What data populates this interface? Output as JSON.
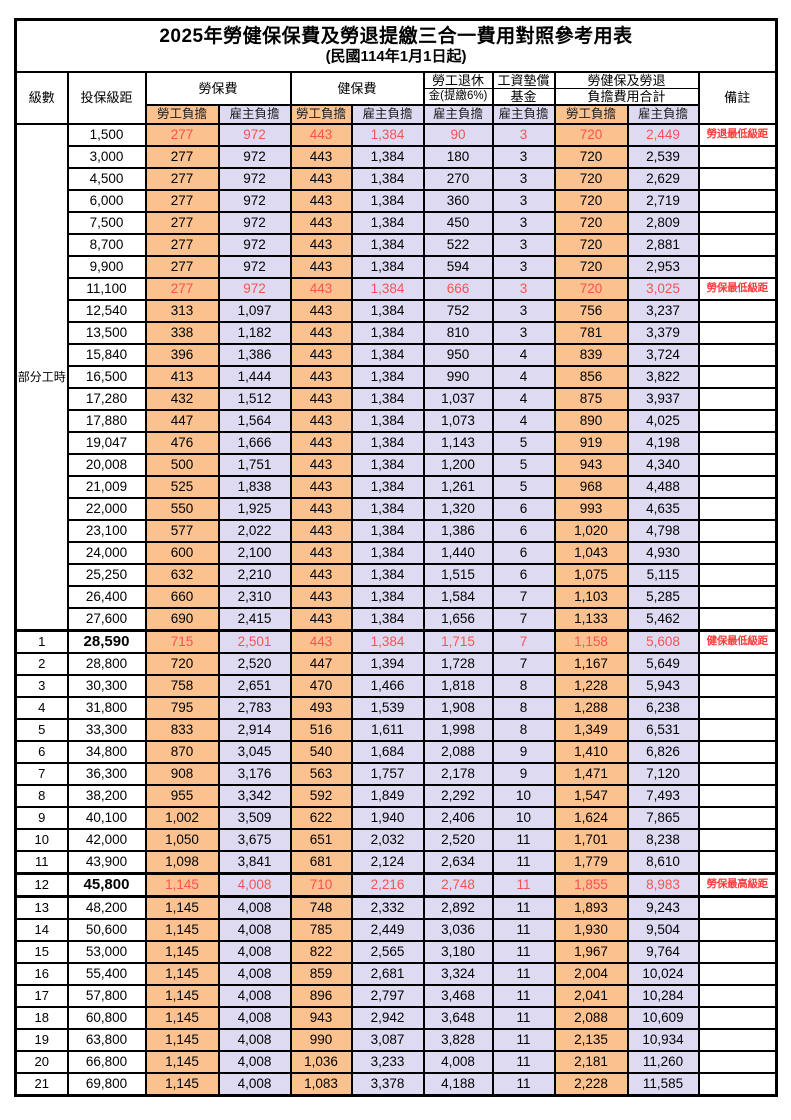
{
  "title": "2025年勞健保保費及勞退提繳三合一費用對照參考用表",
  "subtitle": "(民國114年1月1日起)",
  "colors": {
    "employee_bg": "#FBC18F",
    "employer_bg": "#DEDAF2",
    "highlight_red": "#F75353",
    "remark_red": "#FF3B3B",
    "border": "#000000"
  },
  "header": {
    "level": "級數",
    "bracket": "投保級距",
    "labor_insurance": "勞保費",
    "health_insurance": "健保費",
    "pension_line1": "勞工退休",
    "pension_line2": "金(提繳6%)",
    "wage_fund_line1": "工資墊償",
    "wage_fund_line2": "基金",
    "total_line1": "勞健保及勞退",
    "total_line2": "負擔費用合計",
    "remark": "備註",
    "employee_label": "勞工負擔",
    "employer_label": "雇主負擔"
  },
  "part_time_label": "部分工時",
  "part_time_row_count": 23,
  "rows": [
    {
      "cells": [
        "",
        "1,500",
        "277",
        "972",
        "443",
        "1,384",
        "90",
        "3",
        "720",
        "2,449",
        "勞退最低級距"
      ],
      "red": true
    },
    {
      "cells": [
        "",
        "3,000",
        "277",
        "972",
        "443",
        "1,384",
        "180",
        "3",
        "720",
        "2,539",
        ""
      ]
    },
    {
      "cells": [
        "",
        "4,500",
        "277",
        "972",
        "443",
        "1,384",
        "270",
        "3",
        "720",
        "2,629",
        ""
      ]
    },
    {
      "cells": [
        "",
        "6,000",
        "277",
        "972",
        "443",
        "1,384",
        "360",
        "3",
        "720",
        "2,719",
        ""
      ]
    },
    {
      "cells": [
        "",
        "7,500",
        "277",
        "972",
        "443",
        "1,384",
        "450",
        "3",
        "720",
        "2,809",
        ""
      ]
    },
    {
      "cells": [
        "",
        "8,700",
        "277",
        "972",
        "443",
        "1,384",
        "522",
        "3",
        "720",
        "2,881",
        ""
      ]
    },
    {
      "cells": [
        "",
        "9,900",
        "277",
        "972",
        "443",
        "1,384",
        "594",
        "3",
        "720",
        "2,953",
        ""
      ]
    },
    {
      "cells": [
        "",
        "11,100",
        "277",
        "972",
        "443",
        "1,384",
        "666",
        "3",
        "720",
        "3,025",
        "勞保最低級距"
      ],
      "red": true
    },
    {
      "cells": [
        "",
        "12,540",
        "313",
        "1,097",
        "443",
        "1,384",
        "752",
        "3",
        "756",
        "3,237",
        ""
      ]
    },
    {
      "cells": [
        "",
        "13,500",
        "338",
        "1,182",
        "443",
        "1,384",
        "810",
        "3",
        "781",
        "3,379",
        ""
      ]
    },
    {
      "cells": [
        "",
        "15,840",
        "396",
        "1,386",
        "443",
        "1,384",
        "950",
        "4",
        "839",
        "3,724",
        ""
      ]
    },
    {
      "cells": [
        "",
        "16,500",
        "413",
        "1,444",
        "443",
        "1,384",
        "990",
        "4",
        "856",
        "3,822",
        ""
      ]
    },
    {
      "cells": [
        "",
        "17,280",
        "432",
        "1,512",
        "443",
        "1,384",
        "1,037",
        "4",
        "875",
        "3,937",
        ""
      ]
    },
    {
      "cells": [
        "",
        "17,880",
        "447",
        "1,564",
        "443",
        "1,384",
        "1,073",
        "4",
        "890",
        "4,025",
        ""
      ]
    },
    {
      "cells": [
        "",
        "19,047",
        "476",
        "1,666",
        "443",
        "1,384",
        "1,143",
        "5",
        "919",
        "4,198",
        ""
      ]
    },
    {
      "cells": [
        "",
        "20,008",
        "500",
        "1,751",
        "443",
        "1,384",
        "1,200",
        "5",
        "943",
        "4,340",
        ""
      ]
    },
    {
      "cells": [
        "",
        "21,009",
        "525",
        "1,838",
        "443",
        "1,384",
        "1,261",
        "5",
        "968",
        "4,488",
        ""
      ]
    },
    {
      "cells": [
        "",
        "22,000",
        "550",
        "1,925",
        "443",
        "1,384",
        "1,320",
        "6",
        "993",
        "4,635",
        ""
      ]
    },
    {
      "cells": [
        "",
        "23,100",
        "577",
        "2,022",
        "443",
        "1,384",
        "1,386",
        "6",
        "1,020",
        "4,798",
        ""
      ]
    },
    {
      "cells": [
        "",
        "24,000",
        "600",
        "2,100",
        "443",
        "1,384",
        "1,440",
        "6",
        "1,043",
        "4,930",
        ""
      ]
    },
    {
      "cells": [
        "",
        "25,250",
        "632",
        "2,210",
        "443",
        "1,384",
        "1,515",
        "6",
        "1,075",
        "5,115",
        ""
      ]
    },
    {
      "cells": [
        "",
        "26,400",
        "660",
        "2,310",
        "443",
        "1,384",
        "1,584",
        "7",
        "1,103",
        "5,285",
        ""
      ]
    },
    {
      "cells": [
        "",
        "27,600",
        "690",
        "2,415",
        "443",
        "1,384",
        "1,656",
        "7",
        "1,133",
        "5,462",
        ""
      ]
    },
    {
      "cells": [
        "1",
        "28,590",
        "715",
        "2,501",
        "443",
        "1,384",
        "1,715",
        "7",
        "1,158",
        "5,608",
        "健保最低級距"
      ],
      "red": true,
      "bold": true,
      "thick_top": true
    },
    {
      "cells": [
        "2",
        "28,800",
        "720",
        "2,520",
        "447",
        "1,394",
        "1,728",
        "7",
        "1,167",
        "5,649",
        ""
      ]
    },
    {
      "cells": [
        "3",
        "30,300",
        "758",
        "2,651",
        "470",
        "1,466",
        "1,818",
        "8",
        "1,228",
        "5,943",
        ""
      ]
    },
    {
      "cells": [
        "4",
        "31,800",
        "795",
        "2,783",
        "493",
        "1,539",
        "1,908",
        "8",
        "1,288",
        "6,238",
        ""
      ]
    },
    {
      "cells": [
        "5",
        "33,300",
        "833",
        "2,914",
        "516",
        "1,611",
        "1,998",
        "8",
        "1,349",
        "6,531",
        ""
      ]
    },
    {
      "cells": [
        "6",
        "34,800",
        "870",
        "3,045",
        "540",
        "1,684",
        "2,088",
        "9",
        "1,410",
        "6,826",
        ""
      ]
    },
    {
      "cells": [
        "7",
        "36,300",
        "908",
        "3,176",
        "563",
        "1,757",
        "2,178",
        "9",
        "1,471",
        "7,120",
        ""
      ]
    },
    {
      "cells": [
        "8",
        "38,200",
        "955",
        "3,342",
        "592",
        "1,849",
        "2,292",
        "10",
        "1,547",
        "7,493",
        ""
      ]
    },
    {
      "cells": [
        "9",
        "40,100",
        "1,002",
        "3,509",
        "622",
        "1,940",
        "2,406",
        "10",
        "1,624",
        "7,865",
        ""
      ]
    },
    {
      "cells": [
        "10",
        "42,000",
        "1,050",
        "3,675",
        "651",
        "2,032",
        "2,520",
        "11",
        "1,701",
        "8,238",
        ""
      ]
    },
    {
      "cells": [
        "11",
        "43,900",
        "1,098",
        "3,841",
        "681",
        "2,124",
        "2,634",
        "11",
        "1,779",
        "8,610",
        ""
      ]
    },
    {
      "cells": [
        "12",
        "45,800",
        "1,145",
        "4,008",
        "710",
        "2,216",
        "2,748",
        "11",
        "1,855",
        "8,983",
        "勞保最高級距"
      ],
      "red": true,
      "bold": true,
      "thick_top": true,
      "thick_bottom": true
    },
    {
      "cells": [
        "13",
        "48,200",
        "1,145",
        "4,008",
        "748",
        "2,332",
        "2,892",
        "11",
        "1,893",
        "9,243",
        ""
      ]
    },
    {
      "cells": [
        "14",
        "50,600",
        "1,145",
        "4,008",
        "785",
        "2,449",
        "3,036",
        "11",
        "1,930",
        "9,504",
        ""
      ]
    },
    {
      "cells": [
        "15",
        "53,000",
        "1,145",
        "4,008",
        "822",
        "2,565",
        "3,180",
        "11",
        "1,967",
        "9,764",
        ""
      ]
    },
    {
      "cells": [
        "16",
        "55,400",
        "1,145",
        "4,008",
        "859",
        "2,681",
        "3,324",
        "11",
        "2,004",
        "10,024",
        ""
      ]
    },
    {
      "cells": [
        "17",
        "57,800",
        "1,145",
        "4,008",
        "896",
        "2,797",
        "3,468",
        "11",
        "2,041",
        "10,284",
        ""
      ]
    },
    {
      "cells": [
        "18",
        "60,800",
        "1,145",
        "4,008",
        "943",
        "2,942",
        "3,648",
        "11",
        "2,088",
        "10,609",
        ""
      ]
    },
    {
      "cells": [
        "19",
        "63,800",
        "1,145",
        "4,008",
        "990",
        "3,087",
        "3,828",
        "11",
        "2,135",
        "10,934",
        ""
      ]
    },
    {
      "cells": [
        "20",
        "66,800",
        "1,145",
        "4,008",
        "1,036",
        "3,233",
        "4,008",
        "11",
        "2,181",
        "11,260",
        ""
      ]
    },
    {
      "cells": [
        "21",
        "69,800",
        "1,145",
        "4,008",
        "1,083",
        "3,378",
        "4,188",
        "11",
        "2,228",
        "11,585",
        ""
      ]
    }
  ]
}
